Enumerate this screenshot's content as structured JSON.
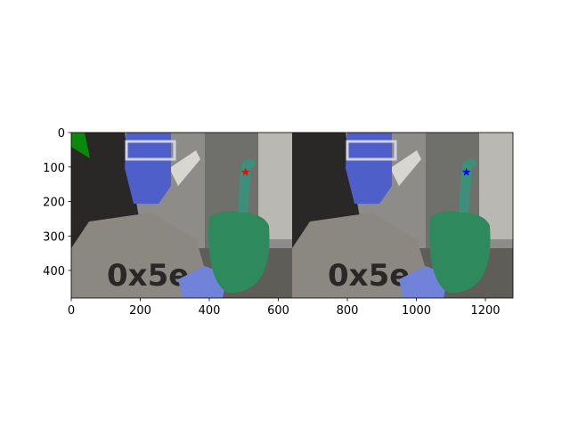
{
  "chart_data": {
    "type": "image",
    "xlim": [
      0,
      1280
    ],
    "ylim": [
      480,
      0
    ],
    "xticks": [
      0,
      200,
      400,
      600,
      800,
      1000,
      1200
    ],
    "yticks": [
      0,
      100,
      200,
      300,
      400
    ],
    "points": [
      {
        "x": 505,
        "y": 115,
        "color": "#ff0000",
        "marker": "star"
      },
      {
        "x": 1145,
        "y": 115,
        "color": "#0000ff",
        "marker": "star"
      }
    ]
  }
}
